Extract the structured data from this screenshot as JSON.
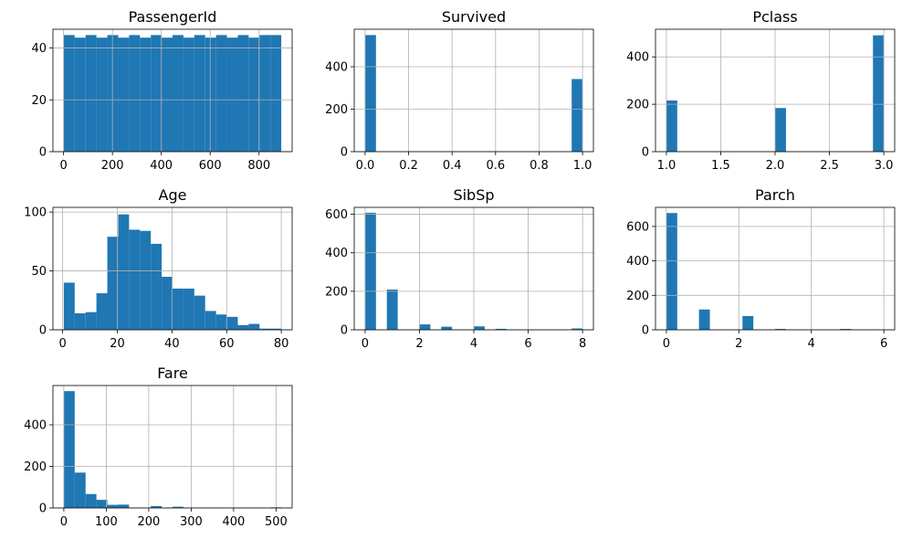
{
  "chart_data": [
    {
      "type": "bar",
      "title": "PassengerId",
      "xlim": [
        -43.5,
        935.5
      ],
      "ylim": [
        0,
        47.25
      ],
      "xticks": [
        0,
        200,
        400,
        600,
        800
      ],
      "xtick_labels": [
        "0",
        "200",
        "400",
        "600",
        "800"
      ],
      "yticks": [
        0,
        20,
        40
      ],
      "ytick_labels": [
        "0",
        "20",
        "40"
      ],
      "bins": {
        "start": 1,
        "width": 44.5
      },
      "values": [
        45,
        44,
        45,
        44,
        45,
        44,
        45,
        44,
        45,
        44,
        45,
        44,
        45,
        44,
        45,
        44,
        45,
        44,
        45,
        45
      ]
    },
    {
      "type": "bar",
      "title": "Survived",
      "xlim": [
        -0.05,
        1.05
      ],
      "ylim": [
        0,
        576.45
      ],
      "xticks": [
        0,
        0.2,
        0.4,
        0.6,
        0.8,
        1.0
      ],
      "xtick_labels": [
        "0.0",
        "0.2",
        "0.4",
        "0.6",
        "0.8",
        "1.0"
      ],
      "yticks": [
        0,
        200,
        400
      ],
      "ytick_labels": [
        "0",
        "200",
        "400"
      ],
      "bins": {
        "start": 0,
        "width": 0.05
      },
      "values": [
        549,
        0,
        0,
        0,
        0,
        0,
        0,
        0,
        0,
        0,
        0,
        0,
        0,
        0,
        0,
        0,
        0,
        0,
        0,
        342
      ]
    },
    {
      "type": "bar",
      "title": "Pclass",
      "xlim": [
        0.9,
        3.1
      ],
      "ylim": [
        0,
        516.6
      ],
      "xticks": [
        1.0,
        1.5,
        2.0,
        2.5,
        3.0
      ],
      "xtick_labels": [
        "1.0",
        "1.5",
        "2.0",
        "2.5",
        "3.0"
      ],
      "yticks": [
        0,
        200,
        400
      ],
      "ytick_labels": [
        "0",
        "200",
        "400"
      ],
      "bins": {
        "start": 1,
        "width": 0.1
      },
      "values": [
        216,
        0,
        0,
        0,
        0,
        0,
        0,
        0,
        0,
        0,
        184,
        0,
        0,
        0,
        0,
        0,
        0,
        0,
        0,
        491
      ]
    },
    {
      "type": "bar",
      "title": "Age",
      "xlim": [
        -3.55,
        83.97
      ],
      "ylim": [
        0,
        103.95
      ],
      "xticks": [
        0,
        20,
        40,
        60,
        80
      ],
      "xtick_labels": [
        "0",
        "20",
        "40",
        "60",
        "80"
      ],
      "yticks": [
        0,
        50,
        100
      ],
      "ytick_labels": [
        "0",
        "50",
        "100"
      ],
      "bins": {
        "start": 0.42,
        "width": 3.979
      },
      "values": [
        40,
        14,
        15,
        31,
        79,
        98,
        85,
        84,
        73,
        45,
        35,
        35,
        29,
        16,
        13,
        11,
        4,
        5,
        1,
        1
      ]
    },
    {
      "type": "bar",
      "title": "SibSp",
      "xlim": [
        -0.4,
        8.4
      ],
      "ylim": [
        0,
        636
      ],
      "xticks": [
        0,
        2,
        4,
        6,
        8
      ],
      "xtick_labels": [
        "0",
        "2",
        "4",
        "6",
        "8"
      ],
      "yticks": [
        0,
        200,
        400,
        600
      ],
      "ytick_labels": [
        "0",
        "200",
        "400",
        "600"
      ],
      "bins": {
        "start": 0,
        "width": 0.4
      },
      "values": [
        608,
        0,
        209,
        0,
        0,
        28,
        0,
        16,
        0,
        0,
        18,
        0,
        5,
        0,
        0,
        0,
        0,
        0,
        0,
        7
      ]
    },
    {
      "type": "bar",
      "title": "Parch",
      "xlim": [
        -0.3,
        6.3
      ],
      "ylim": [
        0,
        710.85
      ],
      "xticks": [
        0,
        2,
        4,
        6
      ],
      "xtick_labels": [
        "0",
        "2",
        "4",
        "6"
      ],
      "yticks": [
        0,
        200,
        400,
        600
      ],
      "ytick_labels": [
        "0",
        "200",
        "400",
        "600"
      ],
      "bins": {
        "start": 0,
        "width": 0.3
      },
      "values": [
        678,
        0,
        0,
        118,
        0,
        0,
        0,
        80,
        0,
        0,
        5,
        0,
        0,
        0,
        0,
        0,
        5,
        0,
        0,
        1,
        0
      ]
    },
    {
      "type": "bar",
      "title": "Fare",
      "xlim": [
        -25.62,
        537.95
      ],
      "ylim": [
        0,
        589
      ],
      "xticks": [
        0,
        100,
        200,
        300,
        400,
        500
      ],
      "xtick_labels": [
        "0",
        "100",
        "200",
        "300",
        "400",
        "500"
      ],
      "yticks": [
        0,
        200,
        400
      ],
      "ytick_labels": [
        "0",
        "200",
        "400"
      ],
      "bins": {
        "start": 0,
        "width": 25.616
      },
      "values": [
        562,
        170,
        67,
        39,
        15,
        16,
        2,
        0,
        9,
        2,
        6,
        0,
        0,
        0,
        0,
        0,
        0,
        0,
        0,
        3
      ]
    }
  ]
}
